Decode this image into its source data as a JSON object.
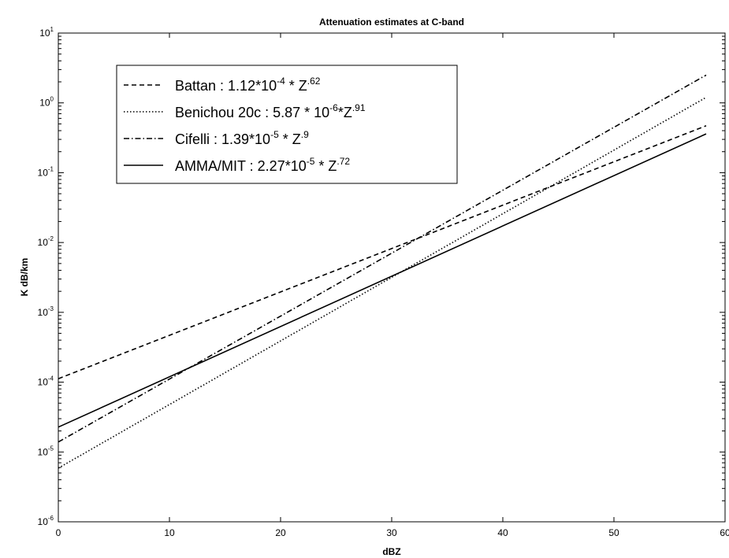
{
  "chart_data": {
    "type": "line",
    "title": "Attenuation estimates at C-band",
    "xlabel": "dBZ",
    "ylabel": "K dB/km",
    "xlim": [
      0,
      60
    ],
    "ylim": [
      1e-06,
      10
    ],
    "yscale": "log",
    "x_ticks": [
      "0",
      "10",
      "20",
      "30",
      "40",
      "50",
      "60"
    ],
    "y_ticks": [
      {
        "base": "10",
        "exp": "-6"
      },
      {
        "base": "10",
        "exp": "-5"
      },
      {
        "base": "10",
        "exp": "-4"
      },
      {
        "base": "10",
        "exp": "-3"
      },
      {
        "base": "10",
        "exp": "-2"
      },
      {
        "base": "10",
        "exp": "-1"
      },
      {
        "base": "10",
        "exp": "0"
      },
      {
        "base": "10",
        "exp": "1"
      }
    ],
    "grid": false,
    "legend_position": "top-left",
    "series": [
      {
        "legend": {
          "parts": [
            [
              "Battan : 1.12*10",
              false
            ],
            [
              "-4",
              true
            ],
            [
              " * Z",
              false
            ],
            [
              ".62",
              true
            ]
          ]
        },
        "dash": "6,4",
        "x": [
          0,
          58.3
        ],
        "y": [
          0.000112,
          0.47
        ]
      },
      {
        "legend": {
          "parts": [
            [
              "Benichou 20c : 5.87 * 10",
              false
            ],
            [
              "-6",
              true
            ],
            [
              "*Z",
              false
            ],
            [
              ".91",
              true
            ]
          ]
        },
        "dash": "1.5,2.5",
        "x": [
          0,
          58.3
        ],
        "y": [
          5.87e-06,
          1.2
        ]
      },
      {
        "legend": {
          "parts": [
            [
              "Cifelli : 1.39*10",
              false
            ],
            [
              "-5",
              true
            ],
            [
              " * Z",
              false
            ],
            [
              ".9",
              true
            ]
          ]
        },
        "dash": "7,3,1.5,3",
        "x": [
          0,
          58.3
        ],
        "y": [
          1.39e-05,
          2.5
        ]
      },
      {
        "legend": {
          "parts": [
            [
              "AMMA/MIT : 2.27*10",
              false
            ],
            [
              "-5",
              true
            ],
            [
              " * Z",
              false
            ],
            [
              ".72",
              true
            ]
          ]
        },
        "dash": "",
        "x": [
          0,
          58.3
        ],
        "y": [
          2.27e-05,
          0.36
        ]
      }
    ]
  }
}
